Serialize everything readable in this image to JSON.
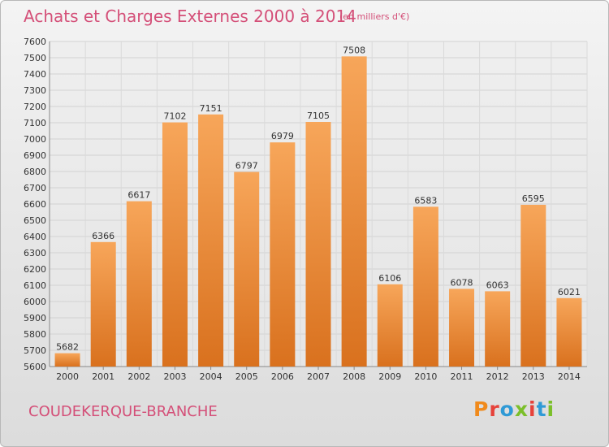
{
  "header": {
    "title": "Achats et Charges Externes 2000 à 2014",
    "unit_note": "(en milliers d'€)"
  },
  "footer": {
    "city": "COUDEKERQUE-BRANCHE",
    "logo_text": "Proxiti"
  },
  "colors": {
    "title": "#d44f78",
    "bar_light": "#f7a65a",
    "bar_dark": "#d9711e",
    "logo": [
      "#f08a1c",
      "#e6423a",
      "#2f9ad6",
      "#7bbf2a",
      "#e6423a",
      "#2f9ad6",
      "#7bbf2a"
    ]
  },
  "chart_data": {
    "type": "bar",
    "categories": [
      "2000",
      "2001",
      "2002",
      "2003",
      "2004",
      "2005",
      "2006",
      "2007",
      "2008",
      "2009",
      "2010",
      "2011",
      "2012",
      "2013",
      "2014"
    ],
    "values": [
      5682,
      6366,
      6617,
      7102,
      7151,
      6797,
      6979,
      7105,
      7508,
      6106,
      6583,
      6078,
      6063,
      6595,
      6021
    ],
    "ylim": [
      5600,
      7600
    ],
    "yticks": [
      5600,
      5700,
      5800,
      5900,
      6000,
      6100,
      6200,
      6300,
      6400,
      6500,
      6600,
      6700,
      6800,
      6900,
      7000,
      7100,
      7200,
      7300,
      7400,
      7500,
      7600
    ],
    "grid": true,
    "legend": "none",
    "data_labels": true
  }
}
